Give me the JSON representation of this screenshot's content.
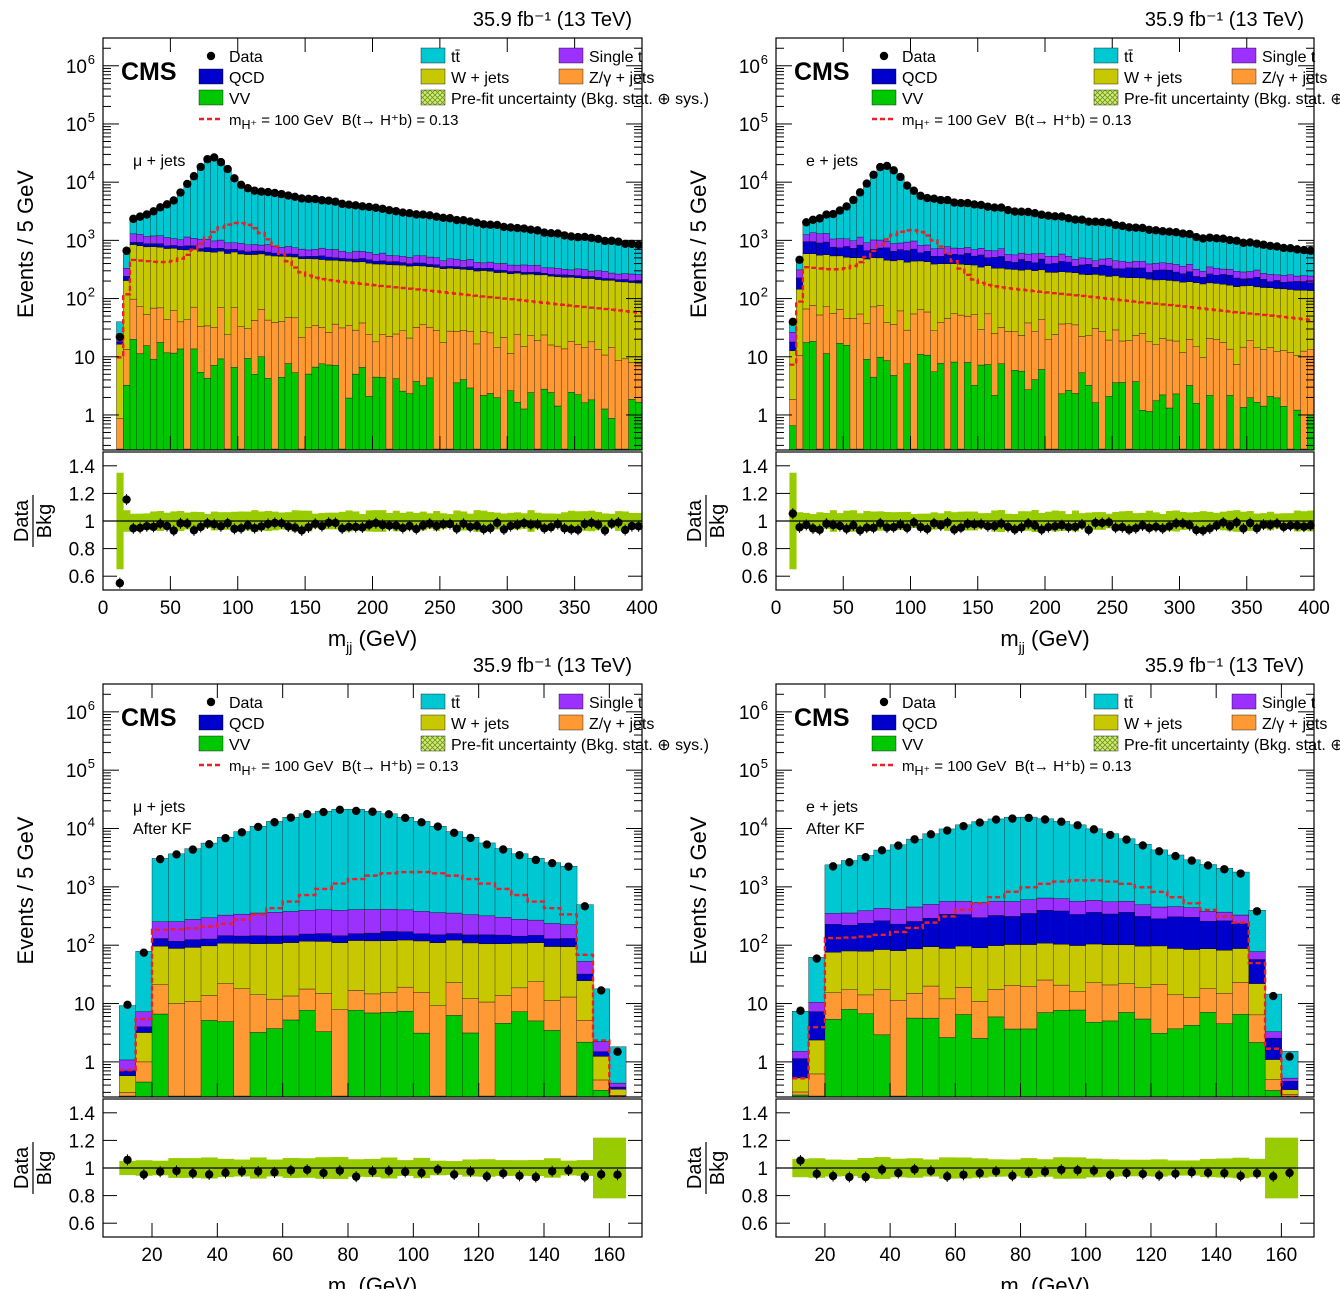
{
  "colors": {
    "ttbar": "#00c8d2",
    "single_t": "#9b30ff",
    "qcd": "#0000cc",
    "wjets": "#c8c800",
    "zjets": "#ff9933",
    "vv": "#00c800",
    "uncertainty": "#99cc00",
    "signal": "#e8202a",
    "data": "#000000"
  },
  "legend": {
    "data": "Data",
    "ttbar": "tt̄",
    "single_t": "Single t",
    "qcd": "QCD",
    "wjets": "W + jets",
    "zjets": "Z/γ + jets",
    "vv": "VV",
    "uncertainty": "Pre-fit uncertainty (Bkg. stat. ⊕ sys.)",
    "signal_mass": "m<sub>H⁺</sub> = 100 GeV",
    "signal_br": "B(t→ H⁺b) = 0.13"
  },
  "cms_label": "CMS",
  "luminosity": "35.9 fb⁻¹ (13 TeV)",
  "ylabel": "Events / 5 GeV",
  "ratio_label_top": "Data",
  "ratio_label_bottom": "Bkg",
  "chart_data": [
    {
      "type": "bar",
      "stacked": true,
      "log_y": true,
      "channel_label": "μ + jets",
      "channel_label2": "",
      "xlabel": "m_jj (GeV)",
      "xlim": [
        0,
        400
      ],
      "x_ticks": [
        0,
        50,
        100,
        150,
        200,
        250,
        300,
        350,
        400
      ],
      "ylim": [
        0.25,
        3000000
      ],
      "ratio_ylim": [
        0.5,
        1.5
      ],
      "ratio_ticks": [
        0.6,
        0.8,
        1,
        1.2,
        1.4
      ],
      "bins": {
        "start": 10,
        "width": 5,
        "count": 78
      },
      "peak_x": 80,
      "data_peak": 28000,
      "ttbar_peak": 27000,
      "data_tail_end": 900,
      "signal_peak_x": 100,
      "signal_peak": 2000
    },
    {
      "type": "bar",
      "stacked": true,
      "log_y": true,
      "channel_label": "e + jets",
      "channel_label2": "",
      "xlabel": "m_jj (GeV)",
      "xlim": [
        0,
        400
      ],
      "x_ticks": [
        0,
        50,
        100,
        150,
        200,
        250,
        300,
        350,
        400
      ],
      "ylim": [
        0.25,
        3000000
      ],
      "ratio_ylim": [
        0.5,
        1.5
      ],
      "ratio_ticks": [
        0.6,
        0.8,
        1,
        1.2,
        1.4
      ],
      "bins": {
        "start": 10,
        "width": 5,
        "count": 78
      },
      "peak_x": 80,
      "data_peak": 20000,
      "ttbar_peak": 19500,
      "data_tail_end": 700,
      "signal_peak_x": 100,
      "signal_peak": 1500
    },
    {
      "type": "bar",
      "stacked": true,
      "log_y": true,
      "channel_label": "μ + jets",
      "channel_label2": "After KF",
      "xlabel": "m_jj (GeV)",
      "xlim": [
        5,
        170
      ],
      "x_ticks": [
        20,
        40,
        60,
        80,
        100,
        120,
        140,
        160
      ],
      "ylim": [
        0.25,
        3000000
      ],
      "ratio_ylim": [
        0.5,
        1.5
      ],
      "ratio_ticks": [
        0.6,
        0.8,
        1,
        1.2,
        1.4
      ],
      "bins": {
        "start": 10,
        "width": 5,
        "count": 31
      },
      "peak_x": 80,
      "data_peak": 22000,
      "ttbar_peak": 21500,
      "signal_peak_x": 100,
      "signal_peak": 1800
    },
    {
      "type": "bar",
      "stacked": true,
      "log_y": true,
      "channel_label": "e + jets",
      "channel_label2": "After KF",
      "xlabel": "m_jj (GeV)",
      "xlim": [
        5,
        170
      ],
      "x_ticks": [
        20,
        40,
        60,
        80,
        100,
        120,
        140,
        160
      ],
      "ylim": [
        0.25,
        3000000
      ],
      "ratio_ylim": [
        0.5,
        1.5
      ],
      "ratio_ticks": [
        0.6,
        0.8,
        1,
        1.2,
        1.4
      ],
      "bins": {
        "start": 10,
        "width": 5,
        "count": 31
      },
      "peak_x": 80,
      "data_peak": 16000,
      "ttbar_peak": 15500,
      "signal_peak_x": 100,
      "signal_peak": 1300
    }
  ]
}
